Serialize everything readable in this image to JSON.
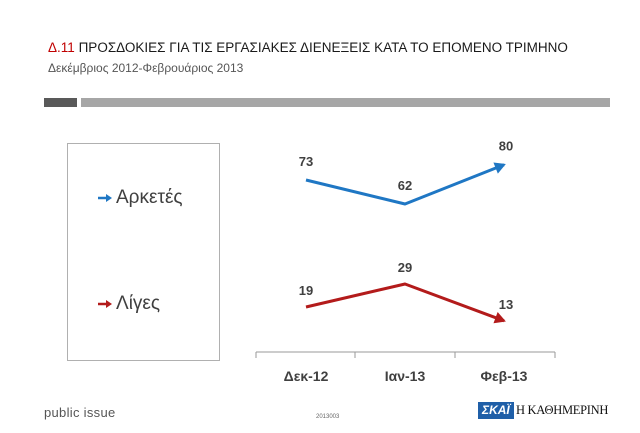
{
  "header": {
    "code": "Δ.11",
    "title": "ΠΡΟΣΔΟΚΙΕΣ ΓΙΑ ΤΙΣ ΕΡΓΑΣΙΑΚΕΣ ΔΙΕΝΕΞΕΙΣ ΚΑΤΑ ΤΟ ΕΠΟΜΕΝΟ ΤΡΙΜΗΝΟ",
    "subtitle": "Δεκέμβριος 2012-Φεβρουάριος 2013"
  },
  "colors": {
    "series1": "#1f77c4",
    "series2": "#b31b1b",
    "accent": "#c00000"
  },
  "chart_data": {
    "type": "line",
    "categories": [
      "Δεκ-12",
      "Ιαν-13",
      "Φεβ-13"
    ],
    "series": [
      {
        "name": "Αρκετές",
        "values": [
          73,
          62,
          80
        ]
      },
      {
        "name": "Λίγες",
        "values": [
          19,
          29,
          13
        ]
      }
    ],
    "legend_position": "left",
    "grid": false
  },
  "footer": {
    "brand": "public issue",
    "code": "2013003",
    "logo_skai": "ΣΚΑΪ",
    "logo_kathimerini": "Η ΚΑΘΗΜΕΡΙΝΗ"
  }
}
